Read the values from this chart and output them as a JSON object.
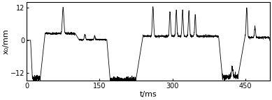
{
  "xlim": [
    0,
    500
  ],
  "ylim": [
    -15,
    14
  ],
  "yticks": [
    -12,
    0,
    12
  ],
  "xticks": [
    0,
    150,
    300,
    450
  ],
  "xlabel": "t/ms",
  "ylabel": "x₀/mm",
  "background_color": "#ffffff",
  "line_color": "#000000",
  "linewidth": 0.6,
  "figsize": [
    3.89,
    1.44
  ],
  "dpi": 100
}
